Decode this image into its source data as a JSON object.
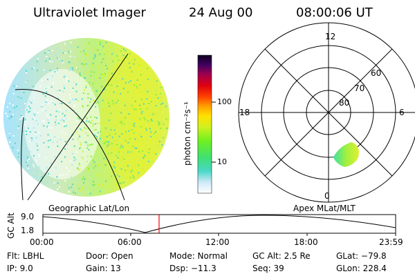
{
  "header": {
    "instrument": "Ultraviolet Imager",
    "date": "24 Aug 00",
    "time": "08:00:06 UT"
  },
  "colorbar": {
    "unit_label": "photon cm⁻²s⁻¹",
    "ticks": [
      "100",
      "10"
    ]
  },
  "panels": {
    "left_label": "Geographic Lat/Lon",
    "right_label": "Apex MLat/MLT"
  },
  "polar": {
    "mlt_labels": [
      "12",
      "18",
      "6",
      "0"
    ],
    "lat_labels": [
      "60",
      "70",
      "80"
    ]
  },
  "timeline": {
    "axis_label": "GC Alt",
    "y_top": "9.0",
    "y_bottom": "1.8",
    "x_ticks": [
      "00:00",
      "06:00",
      "12:00",
      "18:00",
      "23:59"
    ],
    "marker_color": "#ff0000"
  },
  "info": {
    "flt": "Flt: LBHL",
    "ip": "IP:  9.0",
    "door": "Door: Open",
    "gain": "Gain: 13",
    "mode": "Mode: Normal",
    "dsp": "Dsp:  −11.3",
    "gcalt": "GC Alt: 2.5 Re",
    "seq": "Seq: 39",
    "glat": "GLat: −79.8",
    "glon": "GLon: 228.4"
  }
}
